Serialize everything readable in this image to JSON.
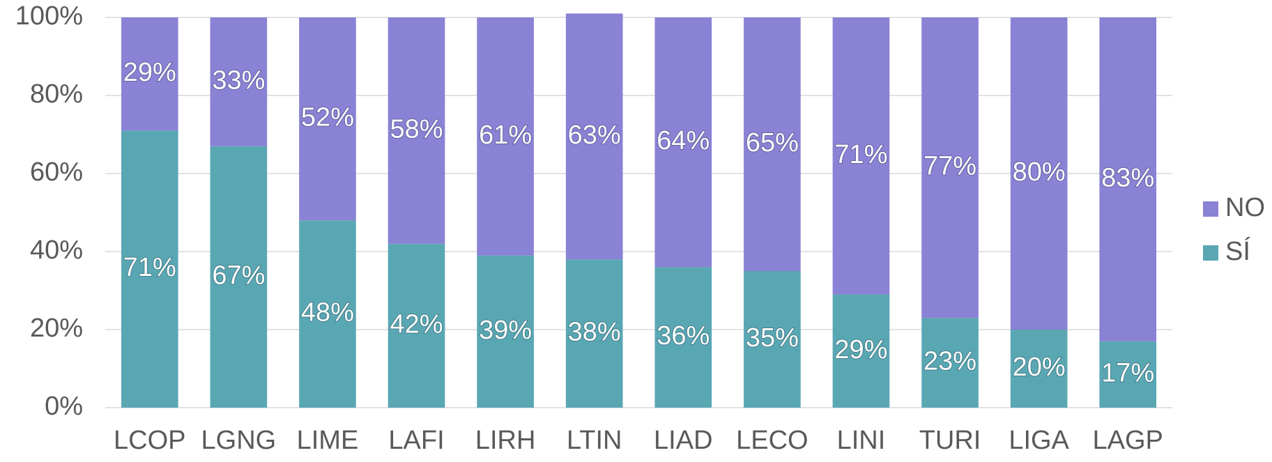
{
  "chart_data": {
    "type": "stacked_bar",
    "categories": [
      "LCOP",
      "LGNG",
      "LIME",
      "LAFI",
      "LIRH",
      "LTIN",
      "LIAD",
      "LECO",
      "LINI",
      "TURI",
      "LIGA",
      "LAGP"
    ],
    "series": [
      {
        "name": "SÍ",
        "color": "#5aa7b4",
        "values": [
          71,
          67,
          48,
          42,
          39,
          38,
          36,
          35,
          29,
          23,
          20,
          17
        ],
        "value_labels": [
          "71%",
          "67%",
          "48%",
          "42%",
          "39%",
          "38%",
          "36%",
          "35%",
          "29%",
          "23%",
          "20%",
          "17%"
        ]
      },
      {
        "name": "NO",
        "color": "#8a82d4",
        "values": [
          29,
          33,
          52,
          58,
          61,
          63,
          64,
          65,
          71,
          77,
          80,
          83
        ],
        "value_labels": [
          "29%",
          "33%",
          "52%",
          "58%",
          "61%",
          "63%",
          "64%",
          "65%",
          "71%",
          "77%",
          "80%",
          "83%"
        ]
      }
    ],
    "ylim": [
      0,
      100
    ],
    "yticks": [
      {
        "value": 0,
        "label": "0%"
      },
      {
        "value": 20,
        "label": "20%"
      },
      {
        "value": 40,
        "label": "40%"
      },
      {
        "value": 60,
        "label": "60%"
      },
      {
        "value": 80,
        "label": "80%"
      },
      {
        "value": 100,
        "label": "100%"
      }
    ],
    "grid": true,
    "legend": "right"
  }
}
